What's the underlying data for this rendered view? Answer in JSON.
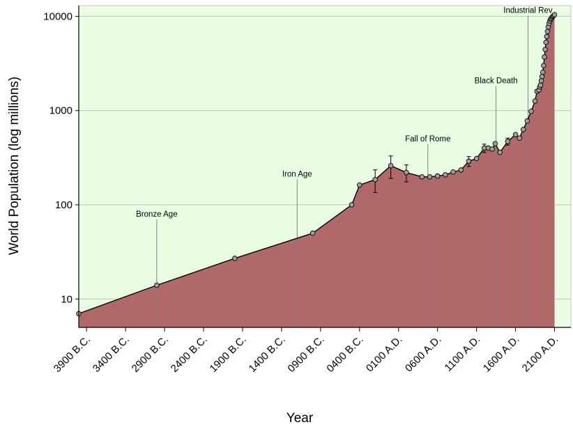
{
  "chart_data": {
    "type": "area",
    "title": "",
    "xlabel": "Year",
    "ylabel": "World Population (log millions)",
    "yscale": "log",
    "xlim": [
      -4000,
      2310
    ],
    "ylim": [
      5,
      13000
    ],
    "grid": true,
    "colors": {
      "plot_background": "#e9fde3",
      "area_fill": "#b06868",
      "line": "#000000",
      "marker_fill": "#a0a0a0",
      "grid": "#c2c2c2",
      "annotation_line": "#808080"
    },
    "x_ticks": [
      -3900,
      -3400,
      -2900,
      -2400,
      -1900,
      -1400,
      -900,
      -400,
      100,
      600,
      1100,
      1600,
      2100
    ],
    "x_tick_labels": [
      "3900  B.C.",
      "3400  B.C.",
      "2900  B.C.",
      "2400  B.C.",
      "1900  B.C.",
      "1400  B.C.",
      "0900  B.C.",
      "0400  B.C.",
      "0100  A.D.",
      "0600  A.D.",
      "1100  A.D.",
      "1600  A.D.",
      "2100  A.D."
    ],
    "y_ticks": [
      10,
      100,
      1000,
      10000
    ],
    "y_tick_labels": [
      "10",
      "100",
      "1000",
      "10000"
    ],
    "series": [
      {
        "x": [
          -4000,
          -3000,
          -2000,
          -1000,
          -500,
          -400,
          -200,
          1,
          200,
          400,
          500,
          600,
          700,
          800,
          900,
          1000,
          1100,
          1200,
          1250,
          1300,
          1340,
          1400,
          1500,
          1600,
          1650,
          1700,
          1750,
          1800,
          1850,
          1875,
          1900,
          1910,
          1920,
          1930,
          1940,
          1950,
          1960,
          1970,
          1980,
          1990,
          2000,
          2010,
          2020,
          2030,
          2040,
          2050,
          2060,
          2070,
          2080,
          2090,
          2100
        ],
        "y": [
          7,
          14,
          27,
          50,
          100,
          162,
          185,
          260,
          220,
          198,
          198,
          202,
          208,
          223,
          234,
          290,
          310,
          400,
          400,
          390,
          445,
          360,
          470,
          556,
          510,
          630,
          775,
          980,
          1260,
          1600,
          1650,
          1780,
          1860,
          2070,
          2300,
          2550,
          3000,
          3700,
          4450,
          5300,
          6100,
          6900,
          7700,
          8400,
          8900,
          9300,
          9500,
          9800,
          10000,
          10200,
          10400
        ],
        "error": [
          null,
          null,
          null,
          null,
          null,
          null,
          50,
          70,
          45,
          null,
          null,
          null,
          null,
          null,
          null,
          35,
          null,
          40,
          null,
          null,
          null,
          null,
          40,
          null,
          null,
          null,
          null,
          null,
          null,
          null,
          null,
          null,
          null,
          null,
          null,
          null,
          null,
          null,
          null,
          null,
          null,
          null,
          null,
          null,
          null,
          null,
          null,
          null,
          null,
          null,
          null
        ]
      }
    ],
    "annotations": [
      {
        "label": "Bronze Age",
        "x": -3000,
        "y_text": 75
      },
      {
        "label": "Iron Age",
        "x": -1200,
        "y_text": 200
      },
      {
        "label": "Fall of Rome",
        "x": 476,
        "y_text": 470
      },
      {
        "label": "Black Death",
        "x": 1350,
        "y_text": 1950
      },
      {
        "label": "Industrial Rev",
        "x": 1760,
        "y_text": 10900
      }
    ]
  }
}
